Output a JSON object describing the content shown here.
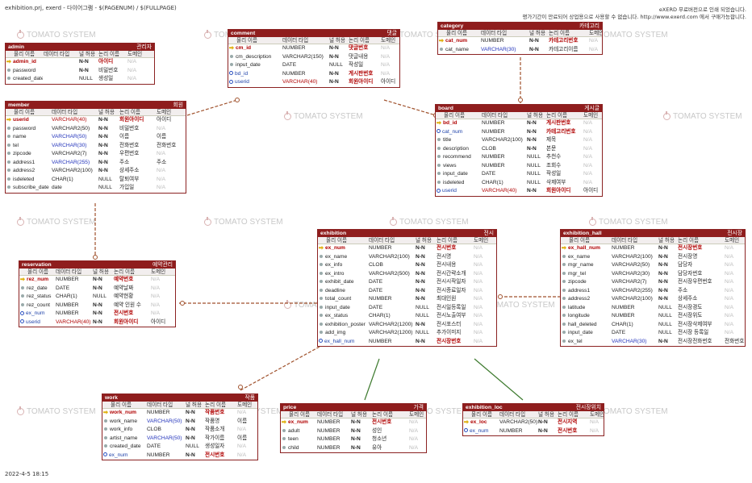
{
  "header": {
    "path": "exhibition.prj, exerd - 다이어그램 - $(PAGENUM) / $(FULLPAGE)",
    "notice1": "eXERD 무료버전으로 인쇄 되었습니다.",
    "notice2": "평가기간이 만료되어 상업용으로 사용할 수 없습니다. http://www.exerd.com 에서 구매가능합니다."
  },
  "footer": {
    "date": "2022-4-5 18:15"
  },
  "watermark": "TOMATO SYSTEM",
  "colors": {
    "title_bg": "#8f1d1d",
    "border": "#8b2222",
    "pk_text": "#b00000",
    "fk_text": "#1b3fa8",
    "relation_dashed": "#a0522d",
    "relation_solid": "#3d7a2e"
  },
  "column_headers": [
    "물리 이름",
    "데이터 타입",
    "널 허용",
    "논리 이름",
    "도메인"
  ],
  "tables": {
    "admin": {
      "name": "admin",
      "logical": "관리자",
      "rows": [
        [
          "admin_id",
          "",
          "N-N",
          "아이디",
          "N/A"
        ],
        [
          "password",
          "",
          "N-N",
          "비밀번호",
          "N/A"
        ],
        [
          "created_date",
          "",
          "NULL",
          "생성일",
          "N/A"
        ]
      ]
    },
    "comment": {
      "name": "comment",
      "logical": "댓글",
      "rows": [
        [
          "cm_id",
          "NUMBER",
          "N-N",
          "댓글번호",
          "N/A"
        ],
        [
          "cm_description",
          "VARCHAR2(150)",
          "N-N",
          "댓글내용",
          "N/A"
        ],
        [
          "input_date",
          "DATE",
          "NULL",
          "작성일",
          "N/A"
        ],
        [
          "bd_id",
          "NUMBER",
          "N-N",
          "게시판번호",
          "N/A"
        ],
        [
          "userid",
          "VARCHAR(40)",
          "N-N",
          "회원아이디",
          "아이디"
        ]
      ]
    },
    "category": {
      "name": "category",
      "logical": "카테고리",
      "rows": [
        [
          "cat_num",
          "NUMBER",
          "N-N",
          "카테고리번호",
          "N/A"
        ],
        [
          "cat_name",
          "VARCHAR(30)",
          "N-N",
          "카테고리이름",
          "N/A"
        ]
      ]
    },
    "member": {
      "name": "member",
      "logical": "회원",
      "rows": [
        [
          "userid",
          "VARCHAR(40)",
          "N-N",
          "회원아이디",
          "아이디"
        ],
        [
          "password",
          "VARCHAR2(50)",
          "N-N",
          "비밀번호",
          "N/A"
        ],
        [
          "name",
          "VARCHAR(50)",
          "N-N",
          "이름",
          "이름"
        ],
        [
          "tel",
          "VARCHAR(30)",
          "N-N",
          "전화번호",
          "전화번호"
        ],
        [
          "zipcode",
          "VARCHAR2(7)",
          "N-N",
          "우편번호",
          "N/A"
        ],
        [
          "address1",
          "VARCHAR(255)",
          "N-N",
          "주소",
          "주소"
        ],
        [
          "address2",
          "VARCHAR2(100)",
          "N-N",
          "상세주소",
          "N/A"
        ],
        [
          "isdeleted",
          "CHAR(1)",
          "NULL",
          "탈퇴여부",
          "N/A"
        ],
        [
          "subscribe_date",
          "date",
          "NULL",
          "가입일",
          "N/A"
        ]
      ]
    },
    "board": {
      "name": "board",
      "logical": "게시글",
      "rows": [
        [
          "bd_id",
          "NUMBER",
          "N-N",
          "게시판번호",
          "N/A"
        ],
        [
          "cat_num",
          "NUMBER",
          "N-N",
          "카테고리번호",
          "N/A"
        ],
        [
          "title",
          "VARCHAR2(100)",
          "N-N",
          "제목",
          "N/A"
        ],
        [
          "description",
          "CLOB",
          "N-N",
          "본문",
          "N/A"
        ],
        [
          "recommend",
          "NUMBER",
          "NULL",
          "추천수",
          "N/A"
        ],
        [
          "views",
          "NUMBER",
          "NULL",
          "조회수",
          "N/A"
        ],
        [
          "input_date",
          "DATE",
          "NULL",
          "작성일",
          "N/A"
        ],
        [
          "isdeleted",
          "CHAR(1)",
          "NULL",
          "삭제여부",
          "N/A"
        ],
        [
          "userid",
          "VARCHAR(40)",
          "N-N",
          "회원아이디",
          "아이디"
        ]
      ]
    },
    "reservation": {
      "name": "reservation",
      "logical": "예약관리",
      "rows": [
        [
          "rez_num",
          "NUMBER",
          "N-N",
          "예약번호",
          "N/A"
        ],
        [
          "rez_date",
          "DATE",
          "N-N",
          "예약날짜",
          "N/A"
        ],
        [
          "rez_status",
          "CHAR(1)",
          "NULL",
          "예약현황",
          "N/A"
        ],
        [
          "rez_count",
          "NUMBER",
          "N-N",
          "예약 인원 수",
          "N/A"
        ],
        [
          "ex_num",
          "NUMBER",
          "N-N",
          "전시번호",
          "N/A"
        ],
        [
          "userid",
          "VARCHAR(40)",
          "N-N",
          "회원아이디",
          "아이디"
        ]
      ]
    },
    "exhibition": {
      "name": "exhibition",
      "logical": "전시",
      "rows": [
        [
          "ex_num",
          "NUMBER",
          "N-N",
          "전시번호",
          "N/A"
        ],
        [
          "ex_name",
          "VARCHAR2(100)",
          "N-N",
          "전시명",
          "N/A"
        ],
        [
          "ex_info",
          "CLOB",
          "N-N",
          "전시내용",
          "N/A"
        ],
        [
          "ex_intro",
          "VARCHAR2(500)",
          "N-N",
          "전시간략소개",
          "N/A"
        ],
        [
          "exhibit_date",
          "DATE",
          "N-N",
          "전시시작일자",
          "N/A"
        ],
        [
          "deadline",
          "DATE",
          "N-N",
          "전시종료일자",
          "N/A"
        ],
        [
          "total_count",
          "NUMBER",
          "N-N",
          "최대인원",
          "N/A"
        ],
        [
          "input_date",
          "DATE",
          "NULL",
          "전시일등록일",
          "N/A"
        ],
        [
          "ex_status",
          "CHAR(1)",
          "NULL",
          "전시노출여부",
          "N/A"
        ],
        [
          "exhibition_poster",
          "VARCHAR2(1200)",
          "N-N",
          "전시포스터",
          "N/A"
        ],
        [
          "add_img",
          "VARCHAR2(1200)",
          "NULL",
          "추가이미지",
          "N/A"
        ],
        [
          "ex_hall_num",
          "NUMBER",
          "N-N",
          "전시장번호",
          "N/A"
        ]
      ]
    },
    "exhibition_hall": {
      "name": "exhibition_hall",
      "logical": "전시장",
      "rows": [
        [
          "ex_hall_num",
          "NUMBER",
          "N-N",
          "전시장번호",
          "N/A"
        ],
        [
          "ex_name",
          "VARCHAR2(100)",
          "N-N",
          "전시장명",
          "N/A"
        ],
        [
          "mgr_name",
          "VARCHAR2(50)",
          "N-N",
          "담당자",
          "N/A"
        ],
        [
          "mgr_tel",
          "VARCHAR2(30)",
          "N-N",
          "담당자번호",
          "N/A"
        ],
        [
          "zipcode",
          "VARCHAR2(7)",
          "N-N",
          "전시장우편번호",
          "N/A"
        ],
        [
          "address1",
          "VARCHAR2(255)",
          "N-N",
          "주소",
          "N/A"
        ],
        [
          "address2",
          "VARCHAR2(100)",
          "N-N",
          "상세주소",
          "N/A"
        ],
        [
          "latitude",
          "NUMBER",
          "NULL",
          "전시장경도",
          "N/A"
        ],
        [
          "longitude",
          "NUMBER",
          "NULL",
          "전시장위도",
          "N/A"
        ],
        [
          "hall_deleted",
          "CHAR(1)",
          "NULL",
          "전시장삭제여부",
          "N/A"
        ],
        [
          "input_date",
          "DATE",
          "NULL",
          "전시장 등록일",
          "N/A"
        ],
        [
          "ex_tel",
          "VARCHAR(30)",
          "N-N",
          "전시장전화번호",
          "전화번호"
        ]
      ]
    },
    "work": {
      "name": "work",
      "logical": "작품",
      "rows": [
        [
          "work_num",
          "NUMBER",
          "N-N",
          "작품번호",
          "N/A"
        ],
        [
          "work_name",
          "VARCHAR(50)",
          "N-N",
          "작품명",
          "이름"
        ],
        [
          "work_info",
          "CLOB",
          "N-N",
          "작품소개",
          "N/A"
        ],
        [
          "artist_name",
          "VARCHAR(50)",
          "N-N",
          "작가이름",
          "이름"
        ],
        [
          "created_date",
          "DATE",
          "NULL",
          "생성일자",
          "N/A"
        ],
        [
          "ex_num",
          "NUMBER",
          "N-N",
          "전시번호",
          "N/A"
        ]
      ]
    },
    "price": {
      "name": "price",
      "logical": "가격",
      "rows": [
        [
          "ex_num",
          "NUMBER",
          "N-N",
          "전시번호",
          "N/A"
        ],
        [
          "adult",
          "NUMBER",
          "N-N",
          "성인",
          "N/A"
        ],
        [
          "teen",
          "NUMBER",
          "N-N",
          "청소년",
          "N/A"
        ],
        [
          "child",
          "NUMBER",
          "N-N",
          "유아",
          "N/A"
        ]
      ]
    },
    "exhibition_loc": {
      "name": "exhibition_loc",
      "logical": "전시장위치",
      "rows": [
        [
          "ex_loc",
          "VARCHAR2(50)",
          "N-N",
          "전시지역",
          "N/A"
        ],
        [
          "ex_num",
          "NUMBER",
          "N-N",
          "전시번호",
          "N/A"
        ]
      ]
    }
  }
}
